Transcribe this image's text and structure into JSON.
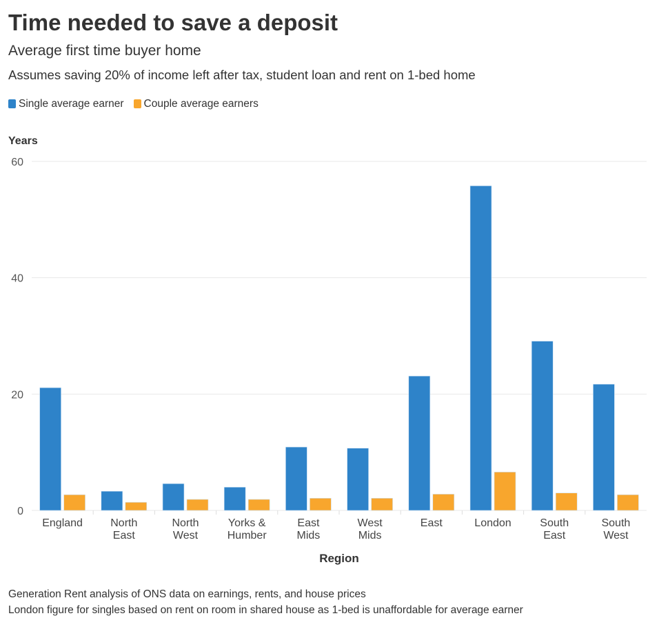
{
  "title": "Time needed to save a deposit",
  "subtitle": "Average first time buyer home",
  "description": "Assumes saving 20% of income left after tax, student loan and rent on 1-bed home",
  "footnotes": [
    "Generation Rent analysis of ONS data on earnings, rents, and house prices",
    "London figure for singles based on rent on room in shared house as 1-bed is unaffordable for average earner"
  ],
  "chart_data": {
    "type": "bar",
    "title": "Time needed to save a deposit",
    "ylabel": "Years",
    "xlabel": "Region",
    "ylim": [
      0,
      60
    ],
    "yticks": [
      0,
      20,
      40,
      60
    ],
    "grid": true,
    "legend_position": "top-left",
    "categories": [
      [
        "England"
      ],
      [
        "North",
        "East"
      ],
      [
        "North",
        "West"
      ],
      [
        "Yorks &",
        "Humber"
      ],
      [
        "East",
        "Mids"
      ],
      [
        "West",
        "Mids"
      ],
      [
        "East"
      ],
      [
        "London"
      ],
      [
        "South",
        "East"
      ],
      [
        "South",
        "West"
      ]
    ],
    "series": [
      {
        "name": "Single average earner",
        "color": "#2e83c9",
        "values": [
          21.1,
          3.3,
          4.6,
          4.0,
          10.9,
          10.7,
          23.1,
          55.8,
          29.1,
          21.7
        ]
      },
      {
        "name": "Couple average earners",
        "color": "#f8a62d",
        "values": [
          2.7,
          1.4,
          1.9,
          1.9,
          2.1,
          2.1,
          2.8,
          6.6,
          3.0,
          2.7
        ]
      }
    ]
  }
}
